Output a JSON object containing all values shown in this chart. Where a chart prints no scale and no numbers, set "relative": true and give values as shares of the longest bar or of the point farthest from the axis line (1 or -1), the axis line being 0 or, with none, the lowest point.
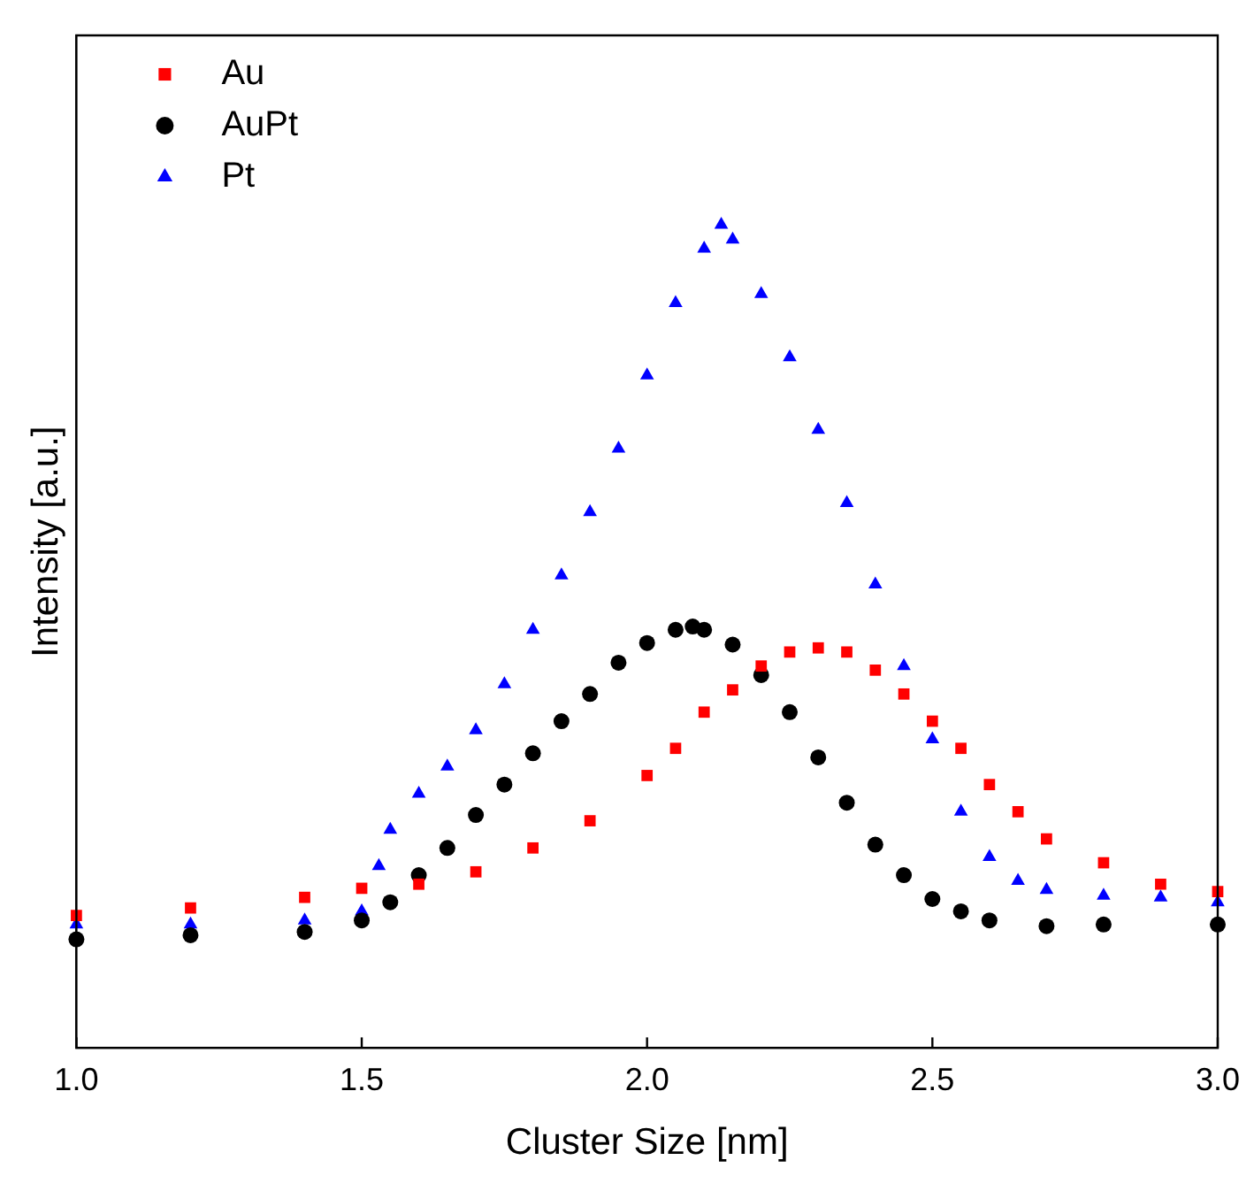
{
  "chart_data": {
    "type": "scatter",
    "xlabel": "Cluster Size [nm]",
    "ylabel": "Intensity [a.u.]",
    "relative": true,
    "xlim": [
      1.0,
      3.0
    ],
    "xticks": [
      {
        "value": 1.0,
        "label": "1.0"
      },
      {
        "value": 1.5,
        "label": "1.5"
      },
      {
        "value": 2.0,
        "label": "2.0"
      },
      {
        "value": 2.5,
        "label": "2.5"
      },
      {
        "value": 3.0,
        "label": "3.0"
      }
    ],
    "grid": false,
    "legend": "top left",
    "series": [
      {
        "name": "Au",
        "color": "#ff0000",
        "marker": "square",
        "x": [
          1.0,
          1.2,
          1.4,
          1.5,
          1.6,
          1.7,
          1.8,
          1.9,
          2.0,
          2.05,
          2.1,
          2.15,
          2.2,
          2.25,
          2.3,
          2.35,
          2.4,
          2.45,
          2.5,
          2.55,
          2.6,
          2.65,
          2.7,
          2.8,
          2.9,
          3.0
        ],
        "values": [
          0.161,
          0.17,
          0.183,
          0.194,
          0.199,
          0.214,
          0.243,
          0.276,
          0.331,
          0.364,
          0.408,
          0.435,
          0.464,
          0.481,
          0.486,
          0.481,
          0.459,
          0.43,
          0.397,
          0.364,
          0.32,
          0.287,
          0.254,
          0.225,
          0.199,
          0.19
        ]
      },
      {
        "name": "AuPt",
        "color": "#000000",
        "marker": "circle",
        "x": [
          1.0,
          1.2,
          1.4,
          1.5,
          1.55,
          1.6,
          1.65,
          1.7,
          1.75,
          1.8,
          1.85,
          1.9,
          1.95,
          2.0,
          2.05,
          2.08,
          2.1,
          2.15,
          2.2,
          2.25,
          2.3,
          2.35,
          2.4,
          2.45,
          2.5,
          2.55,
          2.6,
          2.7,
          2.8,
          3.0
        ],
        "values": [
          0.132,
          0.137,
          0.141,
          0.155,
          0.177,
          0.21,
          0.243,
          0.283,
          0.32,
          0.358,
          0.397,
          0.43,
          0.468,
          0.492,
          0.508,
          0.512,
          0.508,
          0.49,
          0.453,
          0.408,
          0.353,
          0.298,
          0.247,
          0.21,
          0.181,
          0.166,
          0.155,
          0.148,
          0.15,
          0.15
        ]
      },
      {
        "name": "Pt",
        "color": "#0000ff",
        "marker": "triangle",
        "x": [
          1.0,
          1.2,
          1.4,
          1.5,
          1.53,
          1.55,
          1.6,
          1.65,
          1.7,
          1.75,
          1.8,
          1.85,
          1.9,
          1.95,
          2.0,
          2.05,
          2.1,
          2.13,
          2.15,
          2.2,
          2.25,
          2.3,
          2.35,
          2.4,
          2.45,
          2.5,
          2.55,
          2.6,
          2.65,
          2.7,
          2.8,
          2.9,
          3.0
        ],
        "values": [
          0.15,
          0.15,
          0.155,
          0.166,
          0.221,
          0.265,
          0.309,
          0.342,
          0.386,
          0.442,
          0.508,
          0.574,
          0.651,
          0.728,
          0.817,
          0.905,
          0.971,
          1.0,
          0.982,
          0.916,
          0.839,
          0.751,
          0.662,
          0.563,
          0.464,
          0.375,
          0.287,
          0.232,
          0.203,
          0.192,
          0.185,
          0.183,
          0.177
        ]
      }
    ]
  }
}
